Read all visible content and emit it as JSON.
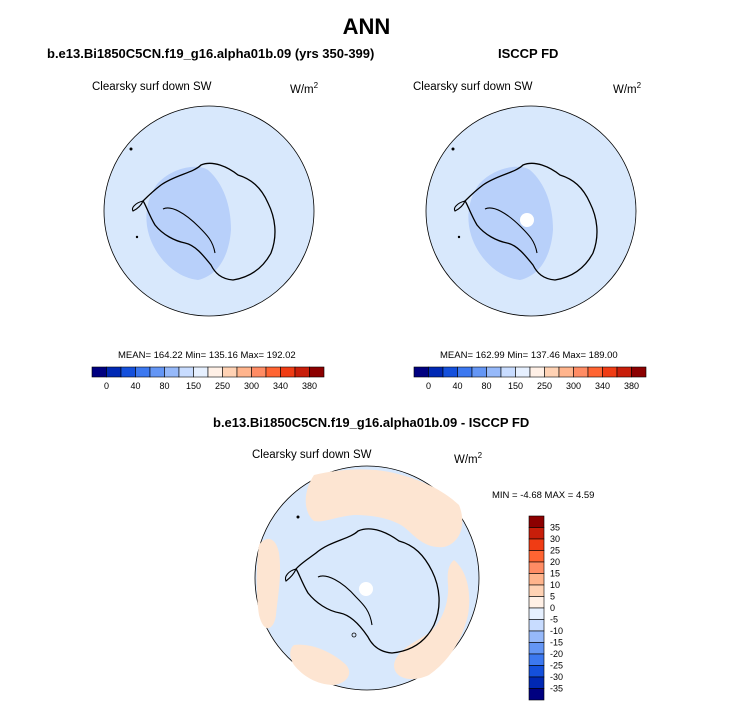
{
  "page": {
    "title": "ANN"
  },
  "panels": [
    {
      "title": "b.e13.Bi1850C5CN.f19_g16.alpha01b.09 (yrs 350-399)",
      "variable": "Clearsky surf down SW",
      "units_base": "W/m",
      "units_exp": "2",
      "stats": "MEAN= 164.22  Min= 135.16  Max= 192.02"
    },
    {
      "title": "ISCCP FD",
      "variable": "Clearsky surf down SW",
      "units_base": "W/m",
      "units_exp": "2",
      "stats": "MEAN= 162.99  Min= 137.46  Max= 189.00"
    },
    {
      "title": "b.e13.Bi1850C5CN.f19_g16.alpha01b.09 - ISCCP FD",
      "variable": "Clearsky surf down SW",
      "units_base": "W/m",
      "units_exp": "2",
      "stats": "MIN =  -4.68 MAX =   4.59"
    }
  ],
  "chart_data": [
    {
      "type": "heatmap",
      "projection": "south-polar-stereographic",
      "title": "b.e13.Bi1850C5CN.f19_g16.alpha01b.09 (yrs 350-399)",
      "variable": "Clearsky surf down SW",
      "units": "W/m2",
      "mean": 164.22,
      "min": 135.16,
      "max": 192.02,
      "colorbar": {
        "orientation": "horizontal",
        "tick_labels": [
          "0",
          "40",
          "80",
          "150",
          "250",
          "300",
          "340",
          "380"
        ],
        "colors": [
          "#000080",
          "#0028b4",
          "#1450dc",
          "#3c78f0",
          "#6496f5",
          "#96b9fa",
          "#c8dcff",
          "#e6f0ff",
          "#fff0e6",
          "#ffd2b4",
          "#ffb48c",
          "#ff8c64",
          "#ff6432",
          "#f03c14",
          "#c81e0a",
          "#8c0000"
        ]
      }
    },
    {
      "type": "heatmap",
      "projection": "south-polar-stereographic",
      "title": "ISCCP FD",
      "variable": "Clearsky surf down SW",
      "units": "W/m2",
      "mean": 162.99,
      "min": 137.46,
      "max": 189.0,
      "colorbar": {
        "orientation": "horizontal",
        "tick_labels": [
          "0",
          "40",
          "80",
          "150",
          "250",
          "300",
          "340",
          "380"
        ],
        "colors": [
          "#000080",
          "#0028b4",
          "#1450dc",
          "#3c78f0",
          "#6496f5",
          "#96b9fa",
          "#c8dcff",
          "#e6f0ff",
          "#fff0e6",
          "#ffd2b4",
          "#ffb48c",
          "#ff8c64",
          "#ff6432",
          "#f03c14",
          "#c81e0a",
          "#8c0000"
        ]
      }
    },
    {
      "type": "heatmap",
      "projection": "south-polar-stereographic",
      "title": "b.e13.Bi1850C5CN.f19_g16.alpha01b.09 - ISCCP FD",
      "variable": "Clearsky surf down SW",
      "units": "W/m2",
      "min": -4.68,
      "max": 4.59,
      "colorbar": {
        "orientation": "vertical",
        "tick_labels": [
          "35",
          "30",
          "25",
          "20",
          "15",
          "10",
          "5",
          "0",
          "-5",
          "-10",
          "-15",
          "-20",
          "-25",
          "-30",
          "-35"
        ],
        "colors": [
          "#8c0000",
          "#c81e0a",
          "#f03c14",
          "#ff6432",
          "#ff8c64",
          "#ffb48c",
          "#ffd2b4",
          "#fff0e6",
          "#e6f0ff",
          "#c8dcff",
          "#96b9fa",
          "#6496f5",
          "#3c78f0",
          "#1450dc",
          "#0028b4",
          "#000080"
        ]
      }
    }
  ]
}
